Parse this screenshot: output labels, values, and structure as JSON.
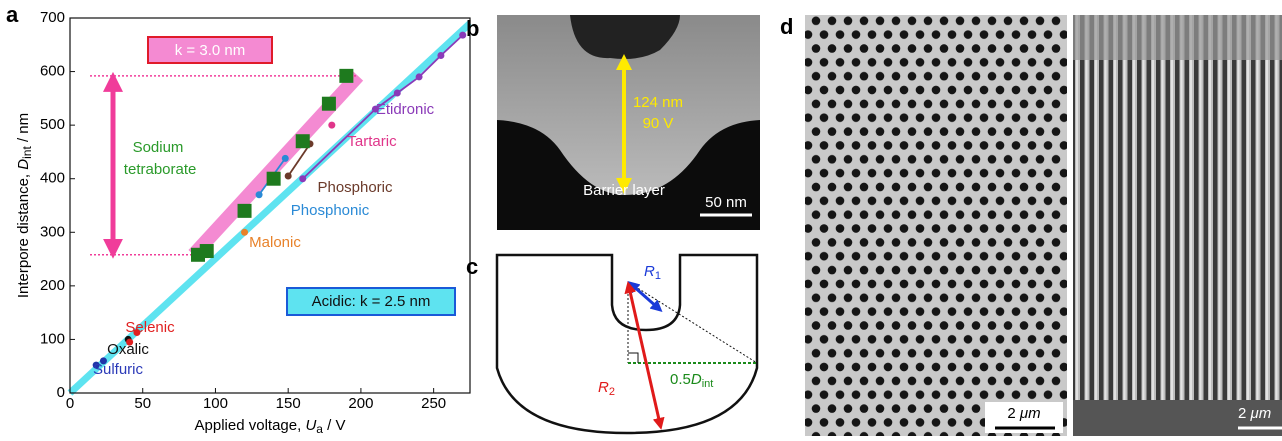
{
  "panel_labels": [
    "a",
    "b",
    "c",
    "d"
  ],
  "chart_data": {
    "type": "scatter",
    "xlabel": {
      "text": "Applied voltage, ",
      "symbol": "U",
      "sub": "a",
      "unit": " / V"
    },
    "ylabel": {
      "text": "Interpore distance, ",
      "symbol": "D",
      "sub": "int",
      "unit": " / nm"
    },
    "xlim": [
      0,
      275
    ],
    "ylim": [
      0,
      700
    ],
    "xticks": [
      0,
      50,
      100,
      150,
      200,
      250
    ],
    "yticks": [
      0,
      100,
      200,
      300,
      400,
      500,
      600,
      700
    ],
    "series": [
      {
        "name": "Sulfuric",
        "color": "#1f35a8",
        "marker": "circle",
        "x": [
          18,
          23
        ],
        "values": [
          52,
          60
        ]
      },
      {
        "name": "Oxalic",
        "color": "#111111",
        "marker": "circle",
        "x": [
          40
        ],
        "values": [
          100
        ]
      },
      {
        "name": "Selenic",
        "color": "#e02020",
        "marker": "circle",
        "x": [
          41,
          46
        ],
        "values": [
          95,
          113
        ]
      },
      {
        "name": "Malonic",
        "color": "#e8822a",
        "marker": "circle",
        "x": [
          120
        ],
        "values": [
          300
        ]
      },
      {
        "name": "Phosphonic",
        "color": "#2a8ad6",
        "marker": "circle",
        "x": [
          130,
          148
        ],
        "values": [
          370,
          438
        ],
        "connect": true
      },
      {
        "name": "Phosphoric",
        "color": "#6b3a2a",
        "marker": "circle",
        "x": [
          150,
          165
        ],
        "values": [
          405,
          465
        ],
        "connect": true
      },
      {
        "name": "Tartaric",
        "color": "#e0358a",
        "marker": "circle",
        "x": [
          180
        ],
        "values": [
          500
        ]
      },
      {
        "name": "Etidronic",
        "color": "#8a3ab8",
        "marker": "circle",
        "x": [
          160,
          210,
          225,
          240,
          255,
          270
        ],
        "values": [
          400,
          530,
          560,
          590,
          630,
          668
        ],
        "connect": true
      },
      {
        "name": "Sodium tetraborate",
        "color": "#1e7a1e",
        "marker": "square",
        "x": [
          88,
          94,
          120,
          140,
          160,
          178,
          190
        ],
        "values": [
          258,
          265,
          340,
          400,
          470,
          540,
          592
        ]
      }
    ],
    "fit_lines": [
      {
        "color": "#5ee3f0",
        "width": 7,
        "x": [
          0,
          275
        ],
        "values": [
          0,
          690
        ]
      },
      {
        "color": "#f48ad2",
        "width": 14,
        "x": [
          85,
          198
        ],
        "values": [
          258,
          592
        ]
      }
    ],
    "range_marks": {
      "color": "#f03c9a",
      "values": [
        258,
        592
      ]
    },
    "annotations": [
      "k = 3.0 nm",
      "Acidic: k = 2.5 nm"
    ]
  },
  "panel_b": {
    "length_label": "124 nm",
    "voltage_label": "90 V",
    "layer_label": "Barrier layer",
    "scale_bar": "50 nm"
  },
  "panel_c": {
    "r1_symbol": "R",
    "r1_sub": "1",
    "r2_symbol": "R",
    "r2_sub": "2",
    "half": "0.5",
    "d_symbol": "D",
    "d_sub": "int"
  },
  "panel_d": {
    "scale_bars": [
      {
        "number": "2 ",
        "unit": "μm"
      },
      {
        "number": "2 ",
        "unit": "μm"
      }
    ]
  }
}
